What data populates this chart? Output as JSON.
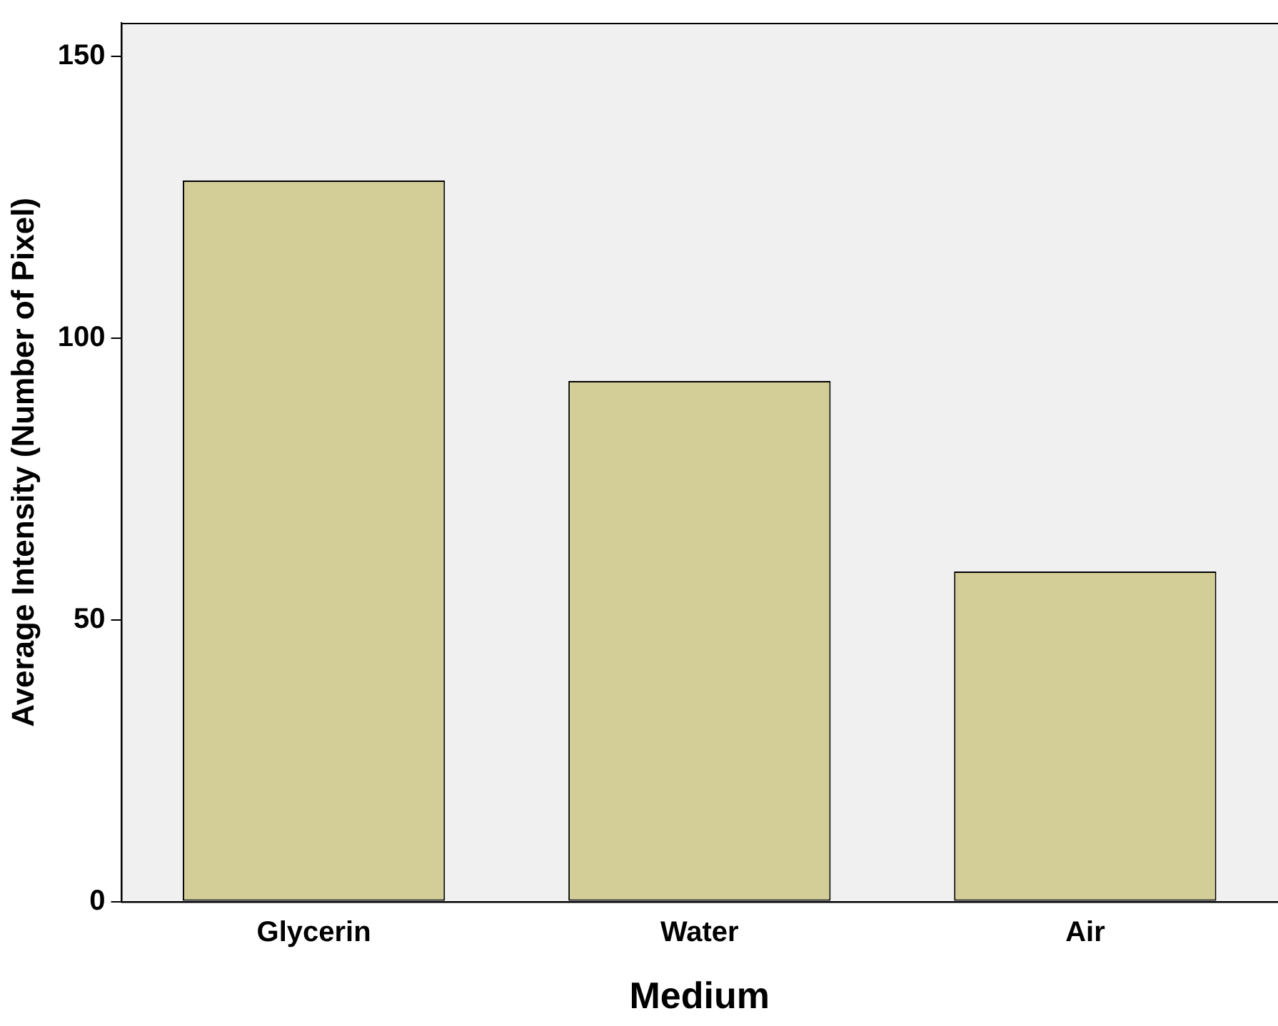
{
  "chart_data": {
    "type": "bar",
    "xlabel": "Medium",
    "ylabel": "Average Intensity (Number of Pixel)",
    "categories": [
      "Glycerin",
      "Water",
      "Air"
    ],
    "values": [
      128,
      92.4,
      58.6
    ],
    "color": "#d3ce97",
    "ylim": [
      0,
      156
    ],
    "yticks": [
      0,
      50,
      100,
      150
    ],
    "grid": false,
    "legend": false
  }
}
